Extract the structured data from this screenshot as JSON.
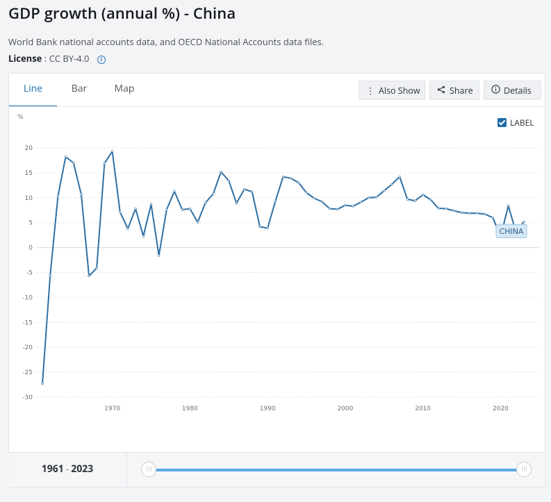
{
  "title": "GDP growth (annual %) - China",
  "source": "World Bank national accounts data, and OECD National Accounts data files.",
  "license": {
    "label": "License",
    "separator": ":",
    "value": "CC BY-4.0"
  },
  "tabs": [
    {
      "label": "Line"
    },
    {
      "label": "Bar"
    },
    {
      "label": "Map"
    }
  ],
  "toolbar": {
    "also_show": "Also Show",
    "share": "Share",
    "details": "Details",
    "label_toggle": "LABEL"
  },
  "range": {
    "start": "1961",
    "separator": "-",
    "end": "2023"
  },
  "colors": {
    "line": "#2e6fa3",
    "accent": "#1f6da8",
    "slider": "#5aa9e2",
    "series_label_bg": "#d6e8f6"
  },
  "chart_data": {
    "type": "line",
    "ylabel": "%",
    "ylim": [
      -30,
      20
    ],
    "yticks": [
      20,
      15,
      10,
      5,
      0,
      -5,
      -10,
      -15,
      -20,
      -25,
      -30
    ],
    "xticks": [
      1970,
      1980,
      1990,
      2000,
      2010,
      2020
    ],
    "xlim": [
      1961,
      2023
    ],
    "grid": true,
    "series": [
      {
        "name": "CHINA",
        "x": [
          1961,
          1962,
          1963,
          1964,
          1965,
          1966,
          1967,
          1968,
          1969,
          1970,
          1971,
          1972,
          1973,
          1974,
          1975,
          1976,
          1977,
          1978,
          1979,
          1980,
          1981,
          1982,
          1983,
          1984,
          1985,
          1986,
          1987,
          1988,
          1989,
          1990,
          1991,
          1992,
          1993,
          1994,
          1995,
          1996,
          1997,
          1998,
          1999,
          2000,
          2001,
          2002,
          2003,
          2004,
          2005,
          2006,
          2007,
          2008,
          2009,
          2010,
          2011,
          2012,
          2013,
          2014,
          2015,
          2016,
          2017,
          2018,
          2019,
          2020,
          2021,
          2022,
          2023
        ],
        "values": [
          -27.3,
          -5.6,
          10.3,
          18.2,
          17.0,
          10.7,
          -5.7,
          -4.1,
          16.9,
          19.3,
          7.1,
          3.8,
          7.8,
          2.3,
          8.7,
          -1.6,
          7.6,
          11.3,
          7.6,
          7.8,
          5.1,
          9.0,
          10.8,
          15.2,
          13.4,
          8.9,
          11.7,
          11.2,
          4.2,
          3.9,
          9.3,
          14.2,
          13.9,
          13.0,
          11.0,
          9.9,
          9.2,
          7.8,
          7.7,
          8.5,
          8.3,
          9.1,
          10.0,
          10.1,
          11.4,
          12.7,
          14.2,
          9.7,
          9.4,
          10.6,
          9.6,
          7.9,
          7.8,
          7.4,
          7.0,
          6.9,
          6.9,
          6.7,
          6.0,
          2.2,
          8.4,
          3.0,
          5.2
        ]
      }
    ]
  }
}
